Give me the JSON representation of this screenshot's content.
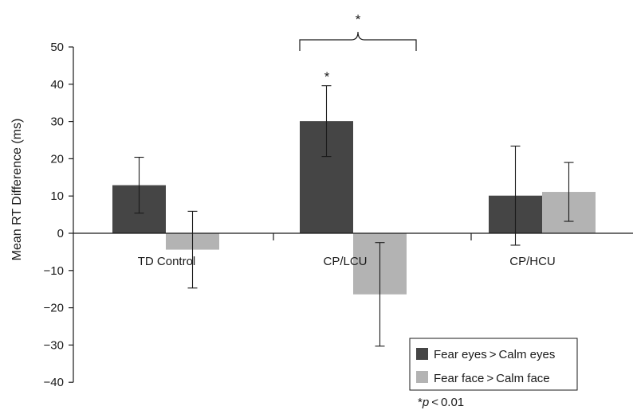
{
  "chart_data": {
    "type": "bar",
    "ylabel": "Mean RT Difference (ms)",
    "xlabel": "",
    "ylim": [
      -40,
      50
    ],
    "yticks": [
      50,
      40,
      30,
      20,
      10,
      0,
      -10,
      -20,
      -30,
      -40
    ],
    "categories": [
      "TD Control",
      "CP/LCU",
      "CP/HCU"
    ],
    "series": [
      {
        "name": "Fear eyes > Calm eyes",
        "color": "#454545",
        "values": [
          12.9,
          30.1,
          10.1
        ],
        "error": [
          7.5,
          9.5,
          13.3
        ]
      },
      {
        "name": "Fear face > Calm face",
        "color": "#b3b3b3",
        "values": [
          -4.4,
          -16.4,
          11.1
        ],
        "error": [
          10.3,
          13.9,
          7.9
        ]
      }
    ],
    "legend_position": "bottom-right",
    "annotations": {
      "bar_star": "*",
      "bracket_star": "*",
      "footnote_star": "*",
      "footnote_p": "p",
      "footnote_rest": " < 0.01"
    }
  }
}
